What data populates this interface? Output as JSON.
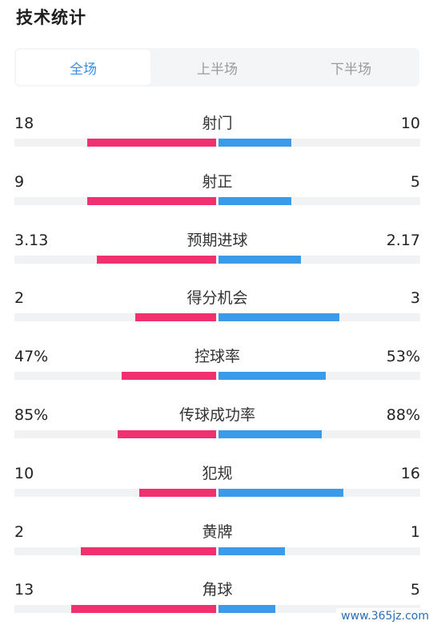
{
  "title": "技术统计",
  "tabs": [
    {
      "label": "全场",
      "active": true
    },
    {
      "label": "上半场",
      "active": false
    },
    {
      "label": "下半场",
      "active": false
    }
  ],
  "colors": {
    "home": "#f0306f",
    "away": "#3a9bea",
    "track": "#f1f2f4",
    "tab_active": "#3a8ee6"
  },
  "stats": [
    {
      "label": "射门",
      "left": "18",
      "right": "10",
      "left_share": 0.64,
      "right_share": 0.36
    },
    {
      "label": "射正",
      "left": "9",
      "right": "5",
      "left_share": 0.64,
      "right_share": 0.36
    },
    {
      "label": "预期进球",
      "left": "3.13",
      "right": "2.17",
      "left_share": 0.59,
      "right_share": 0.41
    },
    {
      "label": "得分机会",
      "left": "2",
      "right": "3",
      "left_share": 0.4,
      "right_share": 0.6
    },
    {
      "label": "控球率",
      "left": "47%",
      "right": "53%",
      "left_share": 0.47,
      "right_share": 0.53
    },
    {
      "label": "传球成功率",
      "left": "85%",
      "right": "88%",
      "left_share": 0.49,
      "right_share": 0.51
    },
    {
      "label": "犯规",
      "left": "10",
      "right": "16",
      "left_share": 0.38,
      "right_share": 0.62
    },
    {
      "label": "黄牌",
      "left": "2",
      "right": "1",
      "left_share": 0.67,
      "right_share": 0.33
    },
    {
      "label": "角球",
      "left": "13",
      "right": "5",
      "left_share": 0.72,
      "right_share": 0.28
    }
  ],
  "watermark": "www.365jz.com"
}
